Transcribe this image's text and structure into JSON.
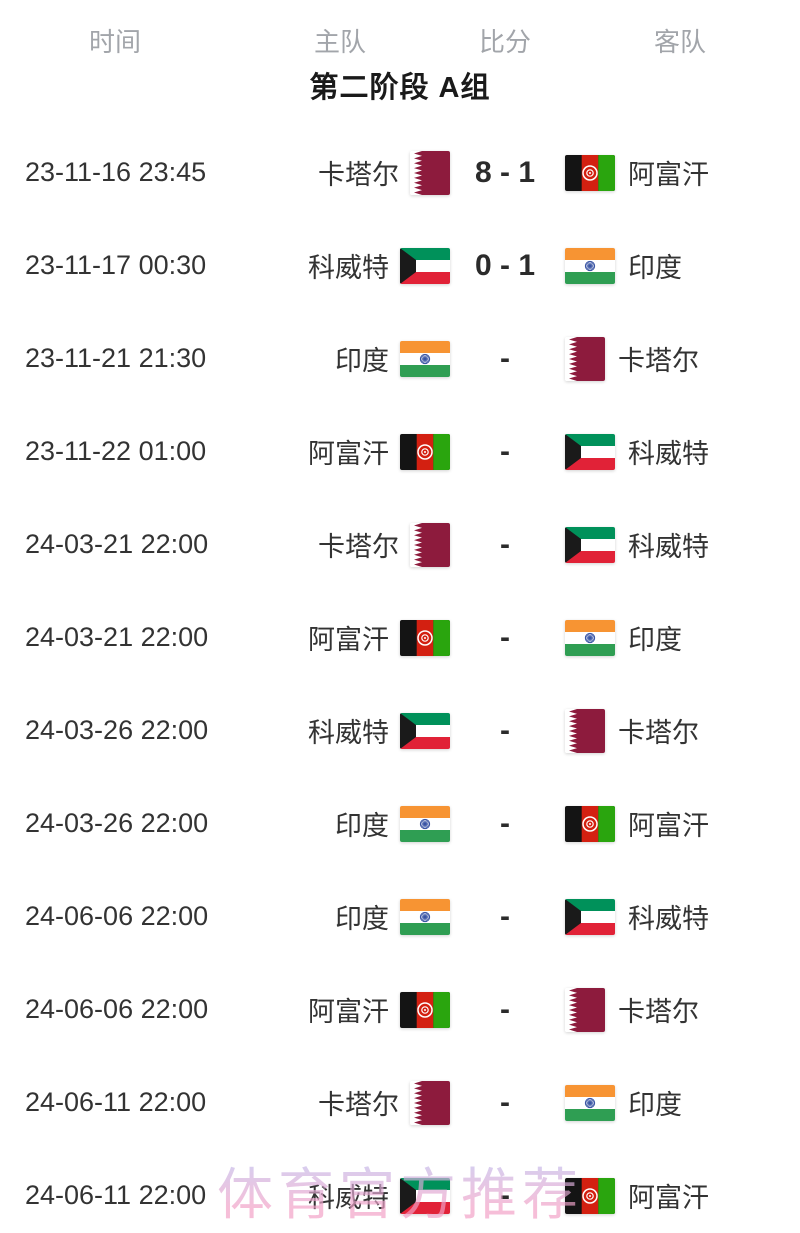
{
  "table": {
    "headers": [
      {
        "label": "时间"
      },
      {
        "label": "主队"
      },
      {
        "label": "比分"
      },
      {
        "label": "客队"
      }
    ],
    "stage_title": "第二阶段 A组",
    "rows": [
      {
        "time": "23-11-16 23:45",
        "home": "卡塔尔",
        "home_flag": "qatar",
        "score": "8 - 1",
        "away": "阿富汗",
        "away_flag": "afghanistan"
      },
      {
        "time": "23-11-17 00:30",
        "home": "科威特",
        "home_flag": "kuwait",
        "score": "0 - 1",
        "away": "印度",
        "away_flag": "india"
      },
      {
        "time": "23-11-21 21:30",
        "home": "印度",
        "home_flag": "india",
        "score": "-",
        "away": "卡塔尔",
        "away_flag": "qatar"
      },
      {
        "time": "23-11-22 01:00",
        "home": "阿富汗",
        "home_flag": "afghanistan",
        "score": "-",
        "away": "科威特",
        "away_flag": "kuwait"
      },
      {
        "time": "24-03-21 22:00",
        "home": "卡塔尔",
        "home_flag": "qatar",
        "score": "-",
        "away": "科威特",
        "away_flag": "kuwait"
      },
      {
        "time": "24-03-21 22:00",
        "home": "阿富汗",
        "home_flag": "afghanistan",
        "score": "-",
        "away": "印度",
        "away_flag": "india"
      },
      {
        "time": "24-03-26 22:00",
        "home": "科威特",
        "home_flag": "kuwait",
        "score": "-",
        "away": "卡塔尔",
        "away_flag": "qatar"
      },
      {
        "time": "24-03-26 22:00",
        "home": "印度",
        "home_flag": "india",
        "score": "-",
        "away": "阿富汗",
        "away_flag": "afghanistan"
      },
      {
        "time": "24-06-06 22:00",
        "home": "印度",
        "home_flag": "india",
        "score": "-",
        "away": "科威特",
        "away_flag": "kuwait"
      },
      {
        "time": "24-06-06 22:00",
        "home": "阿富汗",
        "home_flag": "afghanistan",
        "score": "-",
        "away": "卡塔尔",
        "away_flag": "qatar"
      },
      {
        "time": "24-06-11 22:00",
        "home": "卡塔尔",
        "home_flag": "qatar",
        "score": "-",
        "away": "印度",
        "away_flag": "india"
      },
      {
        "time": "24-06-11 22:00",
        "home": "科威特",
        "home_flag": "kuwait",
        "score": "-",
        "away": "阿富汗",
        "away_flag": "afghanistan"
      }
    ]
  },
  "watermark": {
    "text": "体育官方推荐"
  },
  "colors": {
    "header_text": "#a2a5aa",
    "body_text": "#333333",
    "title_text": "#1a1a1a",
    "watermark_pink": "#f3a0c6",
    "watermark_violet": "#b9bdf0",
    "flags": {
      "qatar": {
        "maroon": "#8d1b3d",
        "white": "#ffffff"
      },
      "afghanistan": {
        "black": "#141414",
        "red": "#d32011",
        "green": "#2aa50e",
        "emblem": "#ffffff"
      },
      "kuwait": {
        "green": "#00915a",
        "white": "#ffffff",
        "red": "#e12237",
        "black": "#1a1a1a"
      },
      "india": {
        "saffron": "#f79433",
        "white": "#ffffff",
        "green": "#2f9e53",
        "navy": "#3a55a4"
      }
    }
  }
}
